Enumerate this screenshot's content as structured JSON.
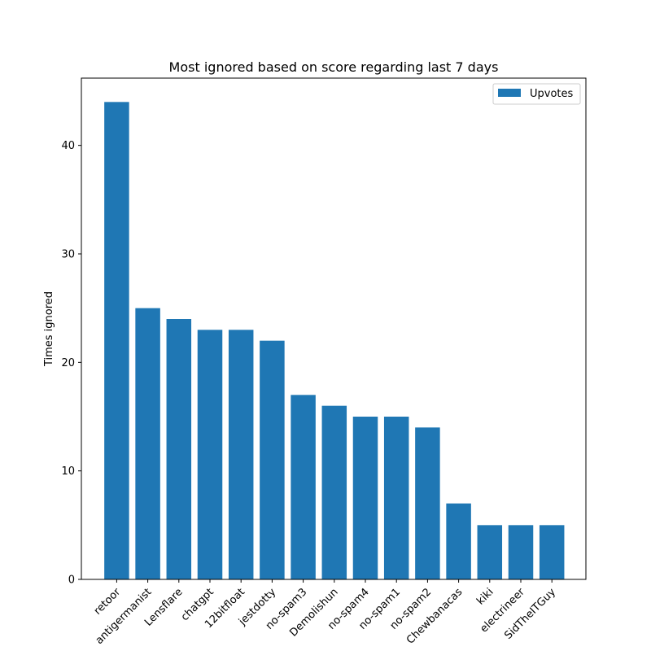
{
  "chart_data": {
    "type": "bar",
    "title": "Most ignored based on score regarding last 7 days",
    "xlabel": "",
    "ylabel": "Times ignored",
    "categories": [
      "retoor",
      "antigermanist",
      "Lensflare",
      "chatgpt",
      "12bitfloat",
      "jestdotty",
      "no-spam3",
      "Demolishun",
      "no-spam4",
      "no-spam1",
      "no-spam2",
      "Chewbanacas",
      "kiki",
      "electrineer",
      "SidTheITGuy"
    ],
    "series": [
      {
        "name": "Upvotes",
        "values": [
          44,
          25,
          24,
          23,
          23,
          22,
          17,
          16,
          15,
          15,
          14,
          7,
          5,
          5,
          5
        ],
        "color": "#1f77b4"
      }
    ],
    "ylim": [
      0,
      46.2
    ],
    "yticks": [
      0,
      10,
      20,
      30,
      40
    ],
    "legend": "top-right",
    "grid": false
  }
}
